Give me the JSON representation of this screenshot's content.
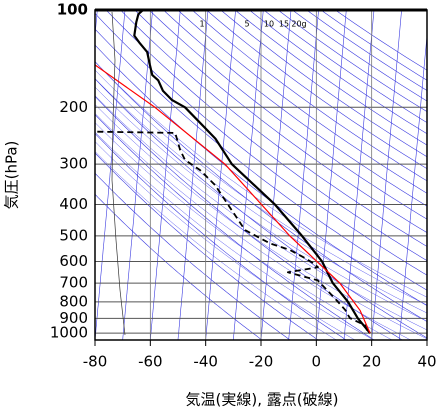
{
  "chart_data": {
    "type": "skewt",
    "xlabel": "気温(実線), 露点(破線)",
    "ylabel": "気圧(hPa)",
    "xlim": [
      -80,
      40
    ],
    "ylim": [
      100,
      1050
    ],
    "xticks": [
      -80,
      -60,
      -40,
      -20,
      0,
      20,
      40
    ],
    "yticks": [
      100,
      200,
      300,
      400,
      500,
      600,
      700,
      800,
      900,
      1000
    ],
    "log_y": true,
    "grid": true,
    "series": [
      {
        "color": "#000000",
        "style": "solid",
        "width": 2.2,
        "pressure": [
          100,
          103,
          109,
          120,
          126,
          135,
          148,
          159,
          165,
          178,
          190,
          200,
          250,
          300,
          400,
          500,
          600,
          700,
          800,
          900,
          1000
        ],
        "values": [
          -73.5,
          -75,
          -75.5,
          -75.8,
          -73.8,
          -70.6,
          -69.2,
          -68,
          -65.7,
          -63.6,
          -60,
          -55.1,
          -43.1,
          -36.3,
          -19.4,
          -8.6,
          -0.5,
          4.1,
          10.2,
          14.3,
          19.2
        ]
      },
      {
        "color": "#000000",
        "style": "dashed",
        "width": 1.8,
        "pressure": [
          238,
          240,
          271,
          291,
          313,
          348,
          409,
          480,
          527,
          553,
          586,
          604,
          625,
          648,
          686,
          781,
          847,
          899,
          945,
          1000
        ],
        "values": [
          -86,
          -57.8,
          -55.5,
          -53.4,
          -47.6,
          -41.7,
          -35.5,
          -29.4,
          -20,
          -12.5,
          -6.8,
          -4.1,
          -1.8,
          -12.5,
          -1.5,
          5.4,
          9.4,
          11.4,
          17.1,
          18.5
        ]
      },
      {
        "color": "#ff0000",
        "style": "solid",
        "width": 1.2,
        "pressure": [
          148,
          200,
          300,
          500,
          700,
          850,
          1000
        ],
        "values": [
          -89,
          -66,
          -38.8,
          -13,
          6.6,
          14.8,
          19.2
        ]
      }
    ],
    "mixing_ratio_labels": [
      "1",
      "5",
      "10",
      "15",
      "20g"
    ]
  }
}
